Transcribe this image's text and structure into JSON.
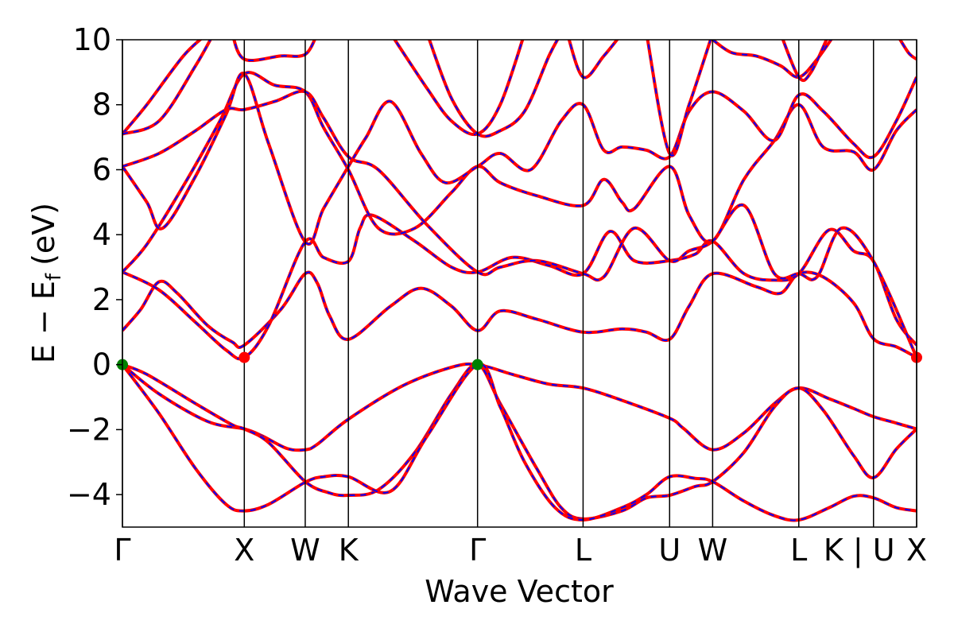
{
  "chart_data": {
    "type": "line",
    "xlabel": "Wave Vector",
    "ylabel_main": "E − E",
    "ylabel_sub": "f",
    "ylabel_unit": "(eV)",
    "ylim": [
      -5,
      10
    ],
    "yticks": [
      -4,
      -2,
      0,
      2,
      4,
      6,
      8,
      10
    ],
    "ytick_labels": [
      "−4",
      "−2",
      "0",
      "2",
      "4",
      "6",
      "8",
      "10"
    ],
    "kpoints": [
      {
        "label": "Γ",
        "pos": 0.0
      },
      {
        "label": "X",
        "pos": 1.0
      },
      {
        "label": "W",
        "pos": 1.5
      },
      {
        "label": "K",
        "pos": 1.854
      },
      {
        "label": "Γ",
        "pos": 2.914
      },
      {
        "label": "L",
        "pos": 3.78
      },
      {
        "label": "U",
        "pos": 4.49
      },
      {
        "label": "W",
        "pos": 4.843
      },
      {
        "label": "L",
        "pos": 5.55
      },
      {
        "label": "K | U",
        "pos": 6.163
      },
      {
        "label": "X",
        "pos": 6.517
      }
    ],
    "colors": {
      "band": "#ff0000",
      "band_dash": "#0000ff",
      "vbm_marker": "#008000",
      "cbm_marker": "#ff0000"
    },
    "series": [
      {
        "values": [
          [
            0,
            0
          ],
          [
            0.3,
            -0.9
          ],
          [
            0.7,
            -1.75
          ],
          [
            1.0,
            -1.98
          ],
          [
            1.15,
            -2.2
          ],
          [
            1.35,
            -2.58
          ],
          [
            1.5,
            -2.62
          ],
          [
            1.6,
            -2.45
          ],
          [
            1.854,
            -1.68
          ],
          [
            2.3,
            -0.65
          ],
          [
            2.7,
            -0.08
          ],
          [
            2.914,
            0
          ],
          [
            3.2,
            -0.3
          ],
          [
            3.5,
            -0.6
          ],
          [
            3.78,
            -0.72
          ],
          [
            4.1,
            -1.1
          ],
          [
            4.49,
            -1.65
          ],
          [
            4.6,
            -1.95
          ],
          [
            4.843,
            -2.62
          ],
          [
            5.1,
            -2.1
          ],
          [
            5.35,
            -1.2
          ],
          [
            5.55,
            -0.72
          ],
          [
            5.8,
            -1.05
          ],
          [
            6.0,
            -1.35
          ],
          [
            6.163,
            -1.6
          ],
          [
            6.35,
            -1.8
          ],
          [
            6.517,
            -1.98
          ]
        ]
      },
      {
        "values": [
          [
            0,
            0
          ],
          [
            0.2,
            -0.3
          ],
          [
            0.6,
            -1.2
          ],
          [
            0.9,
            -1.85
          ],
          [
            1.0,
            -1.98
          ],
          [
            1.2,
            -2.4
          ],
          [
            1.5,
            -3.6
          ],
          [
            1.7,
            -3.95
          ],
          [
            1.854,
            -4.02
          ],
          [
            2.1,
            -3.85
          ],
          [
            2.4,
            -2.7
          ],
          [
            2.7,
            -0.9
          ],
          [
            2.914,
            0
          ],
          [
            3.1,
            -1.2
          ],
          [
            3.4,
            -3.2
          ],
          [
            3.6,
            -4.4
          ],
          [
            3.78,
            -4.75
          ],
          [
            4.1,
            -4.5
          ],
          [
            4.3,
            -4.1
          ],
          [
            4.49,
            -4.02
          ],
          [
            4.7,
            -3.75
          ],
          [
            4.843,
            -3.6
          ],
          [
            5.1,
            -2.7
          ],
          [
            5.35,
            -1.3
          ],
          [
            5.55,
            -0.72
          ],
          [
            5.75,
            -1.4
          ],
          [
            6.0,
            -2.8
          ],
          [
            6.163,
            -3.48
          ],
          [
            6.35,
            -2.6
          ],
          [
            6.517,
            -1.98
          ]
        ]
      },
      {
        "values": [
          [
            0,
            0
          ],
          [
            0.3,
            -1.5
          ],
          [
            0.6,
            -3.2
          ],
          [
            0.85,
            -4.3
          ],
          [
            1.0,
            -4.5
          ],
          [
            1.2,
            -4.3
          ],
          [
            1.5,
            -3.62
          ],
          [
            1.65,
            -3.45
          ],
          [
            1.854,
            -3.45
          ],
          [
            2.2,
            -3.9
          ],
          [
            2.5,
            -2.2
          ],
          [
            2.914,
            0
          ],
          [
            3.1,
            -1.3
          ],
          [
            3.3,
            -3.0
          ],
          [
            3.55,
            -4.4
          ],
          [
            3.78,
            -4.78
          ],
          [
            4.1,
            -4.4
          ],
          [
            4.3,
            -4.0
          ],
          [
            4.49,
            -3.45
          ],
          [
            4.7,
            -3.5
          ],
          [
            4.843,
            -3.6
          ],
          [
            5.1,
            -4.2
          ],
          [
            5.35,
            -4.65
          ],
          [
            5.55,
            -4.78
          ],
          [
            5.8,
            -4.4
          ],
          [
            6.0,
            -4.05
          ],
          [
            6.163,
            -4.1
          ],
          [
            6.35,
            -4.4
          ],
          [
            6.517,
            -4.5
          ]
        ]
      },
      {
        "values": [
          [
            0,
            1.05
          ],
          [
            0.15,
            1.7
          ],
          [
            0.3,
            2.55
          ],
          [
            0.45,
            2.2
          ],
          [
            0.7,
            1.2
          ],
          [
            0.9,
            0.7
          ],
          [
            1.0,
            0.6
          ],
          [
            1.3,
            1.7
          ],
          [
            1.5,
            2.8
          ],
          [
            1.6,
            2.5
          ],
          [
            1.7,
            1.5
          ],
          [
            1.854,
            0.78
          ],
          [
            2.2,
            1.8
          ],
          [
            2.45,
            2.35
          ],
          [
            2.7,
            1.8
          ],
          [
            2.914,
            1.05
          ],
          [
            3.1,
            1.65
          ],
          [
            3.4,
            1.4
          ],
          [
            3.78,
            1.0
          ],
          [
            4.1,
            1.1
          ],
          [
            4.3,
            1.0
          ],
          [
            4.49,
            0.78
          ],
          [
            4.65,
            1.8
          ],
          [
            4.843,
            2.8
          ],
          [
            5.2,
            2.4
          ],
          [
            5.4,
            2.2
          ],
          [
            5.55,
            2.8
          ],
          [
            5.75,
            2.7
          ],
          [
            6.0,
            1.9
          ],
          [
            6.163,
            0.8
          ],
          [
            6.35,
            0.55
          ],
          [
            6.517,
            0.22
          ]
        ]
      },
      {
        "values": [
          [
            0,
            2.85
          ],
          [
            0.3,
            2.3
          ],
          [
            0.6,
            1.3
          ],
          [
            0.85,
            0.45
          ],
          [
            1.0,
            0.22
          ],
          [
            1.2,
            1.2
          ],
          [
            1.5,
            3.78
          ],
          [
            1.65,
            3.3
          ],
          [
            1.854,
            3.18
          ],
          [
            1.95,
            4.2
          ],
          [
            2.05,
            4.6
          ],
          [
            2.4,
            3.8
          ],
          [
            2.7,
            3.0
          ],
          [
            2.914,
            2.85
          ],
          [
            3.2,
            3.3
          ],
          [
            3.5,
            3.05
          ],
          [
            3.78,
            2.8
          ],
          [
            4.0,
            4.1
          ],
          [
            4.2,
            3.2
          ],
          [
            4.49,
            3.2
          ],
          [
            4.7,
            3.4
          ],
          [
            4.843,
            3.8
          ],
          [
            5.1,
            2.8
          ],
          [
            5.35,
            2.6
          ],
          [
            5.55,
            2.8
          ],
          [
            5.8,
            4.15
          ],
          [
            6.0,
            3.5
          ],
          [
            6.163,
            3.18
          ],
          [
            6.35,
            1.4
          ],
          [
            6.517,
            0.6
          ]
        ]
      },
      {
        "values": [
          [
            0,
            2.85
          ],
          [
            0.2,
            3.7
          ],
          [
            0.5,
            5.5
          ],
          [
            0.8,
            7.5
          ],
          [
            1.0,
            8.95
          ],
          [
            1.25,
            8.6
          ],
          [
            1.5,
            8.4
          ],
          [
            1.65,
            7.3
          ],
          [
            1.854,
            6.0
          ],
          [
            2.1,
            4.2
          ],
          [
            2.4,
            4.2
          ],
          [
            2.7,
            5.3
          ],
          [
            2.914,
            6.1
          ],
          [
            3.1,
            5.6
          ],
          [
            3.4,
            5.2
          ],
          [
            3.78,
            4.9
          ],
          [
            3.95,
            5.7
          ],
          [
            4.1,
            5.0
          ],
          [
            4.2,
            4.8
          ],
          [
            4.49,
            6.1
          ],
          [
            4.65,
            4.6
          ],
          [
            4.843,
            3.8
          ],
          [
            5.1,
            5.7
          ],
          [
            5.35,
            6.9
          ],
          [
            5.55,
            8.0
          ],
          [
            5.75,
            6.7
          ],
          [
            6.0,
            6.55
          ],
          [
            6.163,
            6.0
          ],
          [
            6.35,
            7.2
          ],
          [
            6.517,
            7.85
          ]
        ]
      },
      {
        "values": [
          [
            0,
            6.1
          ],
          [
            0.2,
            5.0
          ],
          [
            0.33,
            4.2
          ],
          [
            0.6,
            5.8
          ],
          [
            0.85,
            7.7
          ],
          [
            1.0,
            8.95
          ],
          [
            1.2,
            6.8
          ],
          [
            1.5,
            3.78
          ],
          [
            1.65,
            4.8
          ],
          [
            1.854,
            6.1
          ],
          [
            2.0,
            7.0
          ],
          [
            2.2,
            8.1
          ],
          [
            2.45,
            6.5
          ],
          [
            2.65,
            5.6
          ],
          [
            2.914,
            6.1
          ],
          [
            3.1,
            6.5
          ],
          [
            3.35,
            6.0
          ],
          [
            3.6,
            7.5
          ],
          [
            3.78,
            8.0
          ],
          [
            3.95,
            6.6
          ],
          [
            4.1,
            6.7
          ],
          [
            4.3,
            6.6
          ],
          [
            4.49,
            6.4
          ],
          [
            4.65,
            7.8
          ],
          [
            4.843,
            8.4
          ],
          [
            5.1,
            7.8
          ],
          [
            5.35,
            6.9
          ],
          [
            5.55,
            8.3
          ],
          [
            5.75,
            7.8
          ],
          [
            6.0,
            6.8
          ],
          [
            6.163,
            6.4
          ],
          [
            6.35,
            7.5
          ],
          [
            6.517,
            8.85
          ]
        ]
      },
      {
        "values": [
          [
            0,
            6.1
          ],
          [
            0.3,
            6.5
          ],
          [
            0.6,
            7.2
          ],
          [
            0.85,
            7.85
          ],
          [
            1.0,
            7.85
          ],
          [
            1.25,
            8.1
          ],
          [
            1.5,
            8.4
          ],
          [
            1.65,
            7.6
          ],
          [
            1.854,
            6.4
          ],
          [
            2.1,
            6.0
          ],
          [
            2.5,
            4.3
          ],
          [
            2.914,
            2.85
          ],
          [
            3.1,
            3.0
          ],
          [
            3.4,
            3.2
          ],
          [
            3.78,
            2.8
          ],
          [
            3.95,
            2.7
          ],
          [
            4.2,
            4.2
          ],
          [
            4.49,
            3.2
          ],
          [
            4.65,
            3.5
          ],
          [
            4.843,
            3.8
          ],
          [
            5.1,
            4.9
          ],
          [
            5.35,
            2.8
          ],
          [
            5.55,
            2.8
          ],
          [
            5.7,
            2.7
          ],
          [
            5.9,
            4.2
          ],
          [
            6.163,
            3.18
          ],
          [
            6.517,
            0.22
          ]
        ]
      },
      {
        "values": [
          [
            0,
            7.1
          ],
          [
            0.2,
            8.0
          ],
          [
            0.5,
            9.5
          ],
          [
            0.7,
            10.2
          ]
        ]
      },
      {
        "values": [
          [
            0,
            7.1
          ],
          [
            0.3,
            7.5
          ],
          [
            0.6,
            9.2
          ],
          [
            0.75,
            10.2
          ]
        ]
      },
      {
        "values": [
          [
            0.9,
            10.2
          ],
          [
            1.0,
            9.4
          ],
          [
            1.3,
            9.5
          ],
          [
            1.5,
            9.55
          ],
          [
            1.6,
            10.2
          ]
        ]
      },
      {
        "values": [
          [
            2.2,
            10.2
          ],
          [
            2.5,
            8.5
          ],
          [
            2.7,
            7.5
          ],
          [
            2.914,
            7.1
          ],
          [
            3.1,
            8.0
          ],
          [
            3.3,
            10.2
          ]
        ]
      },
      {
        "values": [
          [
            2.5,
            10.2
          ],
          [
            2.7,
            8.2
          ],
          [
            2.914,
            7.1
          ],
          [
            3.1,
            7.2
          ],
          [
            3.3,
            7.8
          ],
          [
            3.5,
            9.5
          ],
          [
            3.6,
            10.2
          ]
        ]
      },
      {
        "values": [
          [
            3.65,
            10.2
          ],
          [
            3.78,
            8.85
          ],
          [
            3.95,
            9.5
          ],
          [
            4.1,
            10.2
          ]
        ]
      },
      {
        "values": [
          [
            4.3,
            10.2
          ],
          [
            4.49,
            6.5
          ],
          [
            4.65,
            8.0
          ],
          [
            4.843,
            10.2
          ]
        ]
      },
      {
        "values": [
          [
            4.843,
            10.0
          ],
          [
            5.0,
            9.6
          ],
          [
            5.2,
            9.5
          ],
          [
            5.4,
            9.2
          ],
          [
            5.55,
            8.85
          ],
          [
            5.7,
            9.4
          ],
          [
            5.85,
            10.2
          ]
        ]
      },
      {
        "values": [
          [
            5.4,
            10.2
          ],
          [
            5.55,
            8.85
          ],
          [
            5.65,
            9.0
          ],
          [
            5.8,
            10.2
          ]
        ]
      },
      {
        "values": [
          [
            6.35,
            10.2
          ],
          [
            6.45,
            9.6
          ],
          [
            6.517,
            9.4
          ]
        ]
      }
    ],
    "vbm_points": [
      [
        0,
        0
      ],
      [
        2.914,
        0
      ]
    ],
    "cbm_points": [
      [
        1.0,
        0.22
      ],
      [
        6.517,
        0.22
      ]
    ]
  }
}
